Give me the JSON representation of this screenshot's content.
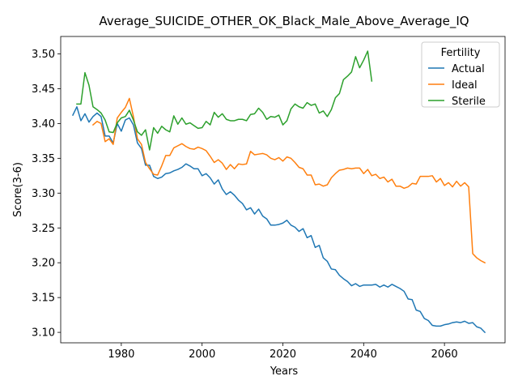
{
  "chart_data": {
    "type": "line",
    "title": "Average_SUICIDE_OTHER_OK_Black_Male_Above_Average_IQ",
    "xlabel": "Years",
    "ylabel": "Score(3-6)",
    "xlim": [
      1965,
      2075
    ],
    "ylim": [
      3.085,
      3.525
    ],
    "xticks": [
      1980,
      2000,
      2020,
      2040,
      2060
    ],
    "yticks": [
      3.1,
      3.15,
      3.2,
      3.25,
      3.3,
      3.35,
      3.4,
      3.45,
      3.5
    ],
    "grid": false,
    "legend": {
      "title": "Fertility",
      "position": "top-right"
    },
    "series": [
      {
        "name": "Actual",
        "color": "#1f77b4",
        "x": [
          1968,
          1969,
          1970,
          1971,
          1972,
          1973,
          1974,
          1975,
          1976,
          1977,
          1978,
          1979,
          1980,
          1981,
          1982,
          1983,
          1984,
          1985,
          1986,
          1987,
          1988,
          1989,
          1990,
          1991,
          1992,
          1993,
          1994,
          1995,
          1996,
          1997,
          1998,
          1999,
          2000,
          2001,
          2002,
          2003,
          2004,
          2005,
          2006,
          2007,
          2008,
          2009,
          2010,
          2011,
          2012,
          2013,
          2014,
          2015,
          2016,
          2017,
          2018,
          2019,
          2020,
          2021,
          2022,
          2023,
          2024,
          2025,
          2026,
          2027,
          2028,
          2029,
          2030,
          2031,
          2032,
          2033,
          2034,
          2035,
          2036,
          2037,
          2038,
          2039,
          2040,
          2041,
          2042,
          2043,
          2044,
          2045,
          2046,
          2047,
          2048,
          2049,
          2050,
          2051,
          2052,
          2053,
          2054,
          2055,
          2056,
          2057,
          2058,
          2059,
          2060,
          2061,
          2062,
          2063,
          2064,
          2065,
          2066,
          2067,
          2068,
          2069,
          2070
        ],
        "y": [
          3.412,
          3.424,
          3.404,
          3.414,
          3.402,
          3.41,
          3.415,
          3.41,
          3.382,
          3.382,
          3.372,
          3.4,
          3.389,
          3.405,
          3.408,
          3.398,
          3.372,
          3.364,
          3.34,
          3.34,
          3.324,
          3.321,
          3.323,
          3.328,
          3.329,
          3.332,
          3.334,
          3.337,
          3.342,
          3.339,
          3.335,
          3.335,
          3.325,
          3.328,
          3.322,
          3.313,
          3.319,
          3.306,
          3.298,
          3.302,
          3.297,
          3.29,
          3.285,
          3.276,
          3.279,
          3.27,
          3.277,
          3.267,
          3.263,
          3.254,
          3.254,
          3.255,
          3.257,
          3.261,
          3.254,
          3.251,
          3.245,
          3.249,
          3.236,
          3.239,
          3.222,
          3.225,
          3.207,
          3.202,
          3.191,
          3.19,
          3.182,
          3.177,
          3.173,
          3.167,
          3.17,
          3.166,
          3.168,
          3.168,
          3.168,
          3.169,
          3.165,
          3.168,
          3.165,
          3.169,
          3.166,
          3.163,
          3.159,
          3.148,
          3.147,
          3.132,
          3.13,
          3.12,
          3.117,
          3.11,
          3.109,
          3.109,
          3.111,
          3.112,
          3.114,
          3.115,
          3.114,
          3.116,
          3.113,
          3.114,
          3.108,
          3.106,
          3.1
        ]
      },
      {
        "name": "Ideal",
        "color": "#ff7f0e",
        "x": [
          1973,
          1974,
          1975,
          1976,
          1977,
          1978,
          1979,
          1980,
          1981,
          1982,
          1983,
          1984,
          1985,
          1986,
          1987,
          1988,
          1989,
          1990,
          1991,
          1992,
          1993,
          1994,
          1995,
          1996,
          1997,
          1998,
          1999,
          2000,
          2001,
          2002,
          2003,
          2004,
          2005,
          2006,
          2007,
          2008,
          2009,
          2010,
          2011,
          2012,
          2013,
          2014,
          2015,
          2016,
          2017,
          2018,
          2019,
          2020,
          2021,
          2022,
          2023,
          2024,
          2025,
          2026,
          2027,
          2028,
          2029,
          2030,
          2031,
          2032,
          2033,
          2034,
          2035,
          2036,
          2037,
          2038,
          2039,
          2040,
          2041,
          2042,
          2043,
          2044,
          2045,
          2046,
          2047,
          2048,
          2049,
          2050,
          2051,
          2052,
          2053,
          2054,
          2055,
          2056,
          2057,
          2058,
          2059,
          2060,
          2061,
          2062,
          2063,
          2064,
          2065,
          2066,
          2067,
          2068,
          2069,
          2070
        ],
        "y": [
          3.398,
          3.403,
          3.4,
          3.374,
          3.378,
          3.37,
          3.408,
          3.416,
          3.423,
          3.436,
          3.41,
          3.378,
          3.37,
          3.344,
          3.335,
          3.327,
          3.326,
          3.339,
          3.354,
          3.354,
          3.365,
          3.368,
          3.371,
          3.367,
          3.364,
          3.363,
          3.366,
          3.364,
          3.361,
          3.353,
          3.344,
          3.348,
          3.343,
          3.334,
          3.341,
          3.335,
          3.342,
          3.341,
          3.342,
          3.36,
          3.355,
          3.356,
          3.357,
          3.355,
          3.35,
          3.348,
          3.351,
          3.346,
          3.352,
          3.35,
          3.344,
          3.337,
          3.335,
          3.326,
          3.326,
          3.312,
          3.313,
          3.31,
          3.312,
          3.322,
          3.328,
          3.333,
          3.334,
          3.336,
          3.335,
          3.336,
          3.336,
          3.328,
          3.334,
          3.325,
          3.327,
          3.321,
          3.323,
          3.316,
          3.32,
          3.31,
          3.31,
          3.307,
          3.309,
          3.314,
          3.313,
          3.324,
          3.324,
          3.324,
          3.325,
          3.316,
          3.321,
          3.311,
          3.315,
          3.309,
          3.317,
          3.31,
          3.315,
          3.309,
          3.213,
          3.207,
          3.203,
          3.2
        ]
      },
      {
        "name": "Sterile",
        "color": "#2ca02c",
        "x": [
          1969,
          1970,
          1971,
          1972,
          1973,
          1974,
          1975,
          1976,
          1977,
          1978,
          1979,
          1980,
          1981,
          1982,
          1983,
          1984,
          1985,
          1986,
          1987,
          1988,
          1989,
          1990,
          1991,
          1992,
          1993,
          1994,
          1995,
          1996,
          1997,
          1998,
          1999,
          2000,
          2001,
          2002,
          2003,
          2004,
          2005,
          2006,
          2007,
          2008,
          2009,
          2010,
          2011,
          2012,
          2013,
          2014,
          2015,
          2016,
          2017,
          2018,
          2019,
          2020,
          2021,
          2022,
          2023,
          2024,
          2025,
          2026,
          2027,
          2028,
          2029,
          2030,
          2031,
          2032,
          2033,
          2034,
          2035,
          2036,
          2037,
          2038,
          2039,
          2040,
          2041,
          2042
        ],
        "y": [
          3.428,
          3.428,
          3.473,
          3.455,
          3.424,
          3.42,
          3.415,
          3.405,
          3.388,
          3.387,
          3.401,
          3.408,
          3.41,
          3.419,
          3.405,
          3.388,
          3.383,
          3.391,
          3.362,
          3.394,
          3.386,
          3.396,
          3.391,
          3.388,
          3.411,
          3.399,
          3.408,
          3.399,
          3.401,
          3.397,
          3.393,
          3.394,
          3.403,
          3.398,
          3.416,
          3.409,
          3.414,
          3.406,
          3.404,
          3.404,
          3.406,
          3.406,
          3.404,
          3.413,
          3.414,
          3.422,
          3.416,
          3.406,
          3.41,
          3.409,
          3.412,
          3.398,
          3.404,
          3.421,
          3.428,
          3.424,
          3.422,
          3.43,
          3.426,
          3.428,
          3.415,
          3.418,
          3.41,
          3.42,
          3.437,
          3.443,
          3.463,
          3.468,
          3.474,
          3.496,
          3.48,
          3.491,
          3.504,
          3.461
        ]
      }
    ]
  }
}
